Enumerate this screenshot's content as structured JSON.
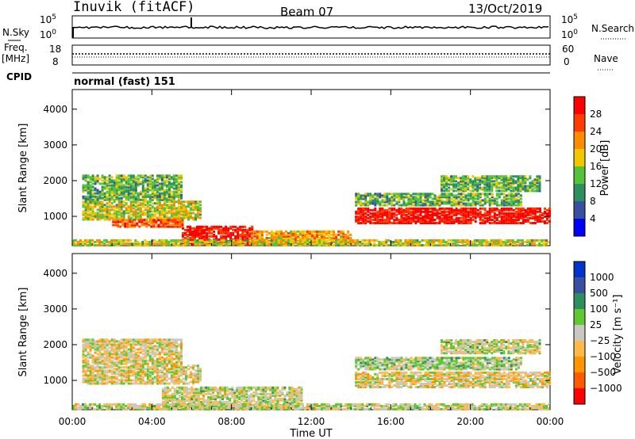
{
  "header": {
    "station": "Inuvik  (fitACF)",
    "beam": "Beam 07",
    "date": "13/Oct/2019"
  },
  "strip_labels": {
    "nsky": "N.Sky",
    "nsearch": "N.Search",
    "freq": "Freq.",
    "freq_unit": "[MHz]",
    "nave": "Nave",
    "cpid": "CPID",
    "cpid_value": "normal (fast) 151"
  },
  "strip_ticks": {
    "nsky_top": "10^5",
    "nsky_bottom": "10^0",
    "freq_top": "18",
    "freq_bottom": "8",
    "nave_top": "60",
    "nave_bottom": "0"
  },
  "colors": {
    "power": [
      "#0000ff",
      "#3a4fa0",
      "#2e8f5e",
      "#56c23a",
      "#f2c600",
      "#ff8c00",
      "#ff3c00",
      "#ff0000"
    ],
    "velocity": [
      "#ff0000",
      "#ff5a00",
      "#ff9600",
      "#ffb84a",
      "#c8c8c0",
      "#5fc832",
      "#2e8f5e",
      "#3a4fa0",
      "#0033cc"
    ]
  },
  "chart_data": [
    {
      "type": "heatmap",
      "title": "",
      "xlabel": "",
      "ylabel": "Slant Range [km]",
      "x_ticks": [
        "00:00",
        "04:00",
        "08:00",
        "12:00",
        "16:00",
        "20:00",
        "00:00"
      ],
      "y_ticks": [
        "1000",
        "2000",
        "3000",
        "4000"
      ],
      "ylim": [
        180,
        4550
      ],
      "colorbar_label": "Power [dB]",
      "colorbar_ticks": [
        "4",
        "8",
        "12",
        "16",
        "20",
        "24",
        "28"
      ],
      "crange": [
        0,
        30
      ],
      "regions": [
        {
          "t0": 0.5,
          "t1": 5.5,
          "r0": 1450,
          "r1": 2150,
          "level": 12
        },
        {
          "t0": 0.5,
          "t1": 6.5,
          "r0": 900,
          "r1": 1400,
          "level": 16
        },
        {
          "t0": 2.0,
          "t1": 5.5,
          "r0": 700,
          "r1": 900,
          "level": 24
        },
        {
          "t0": 5.5,
          "t1": 9.0,
          "r0": 200,
          "r1": 700,
          "level": 28
        },
        {
          "t0": 14.2,
          "t1": 24.0,
          "r0": 800,
          "r1": 1250,
          "level": 28
        },
        {
          "t0": 14.2,
          "t1": 22.5,
          "r0": 1300,
          "r1": 1650,
          "level": 12
        },
        {
          "t0": 18.5,
          "t1": 23.5,
          "r0": 1700,
          "r1": 2150,
          "level": 12
        },
        {
          "t0": 9.0,
          "t1": 14.0,
          "r0": 200,
          "r1": 600,
          "level": 20
        },
        {
          "t0": 0.0,
          "t1": 24.0,
          "r0": 180,
          "r1": 330,
          "level": 16
        }
      ]
    },
    {
      "type": "heatmap",
      "title": "",
      "xlabel": "Time UT",
      "ylabel": "Slant Range [km]",
      "x_ticks": [
        "00:00",
        "04:00",
        "08:00",
        "12:00",
        "16:00",
        "20:00",
        "00:00"
      ],
      "y_ticks": [
        "1000",
        "2000",
        "3000",
        "4000"
      ],
      "ylim": [
        180,
        4550
      ],
      "colorbar_label": "Velocity [m s⁻¹]",
      "colorbar_ticks": [
        "1000",
        "500",
        "100",
        "25",
        "−25",
        "−100",
        "−500",
        "−1000"
      ],
      "crange": [
        -1000,
        1000
      ],
      "regions": [
        {
          "t0": 0.5,
          "t1": 5.5,
          "r0": 1450,
          "r1": 2150,
          "level": -100
        },
        {
          "t0": 0.5,
          "t1": 6.5,
          "r0": 900,
          "r1": 1400,
          "level": -100
        },
        {
          "t0": 4.5,
          "t1": 11.5,
          "r0": 200,
          "r1": 800,
          "level": 0
        },
        {
          "t0": 14.2,
          "t1": 24.0,
          "r0": 800,
          "r1": 1250,
          "level": -100
        },
        {
          "t0": 14.2,
          "t1": 22.5,
          "r0": 1300,
          "r1": 1650,
          "level": 100
        },
        {
          "t0": 18.5,
          "t1": 23.5,
          "r0": 1750,
          "r1": 2150,
          "level": 0
        },
        {
          "t0": 0.0,
          "t1": 24.0,
          "r0": 180,
          "r1": 330,
          "level": 0
        }
      ]
    }
  ]
}
